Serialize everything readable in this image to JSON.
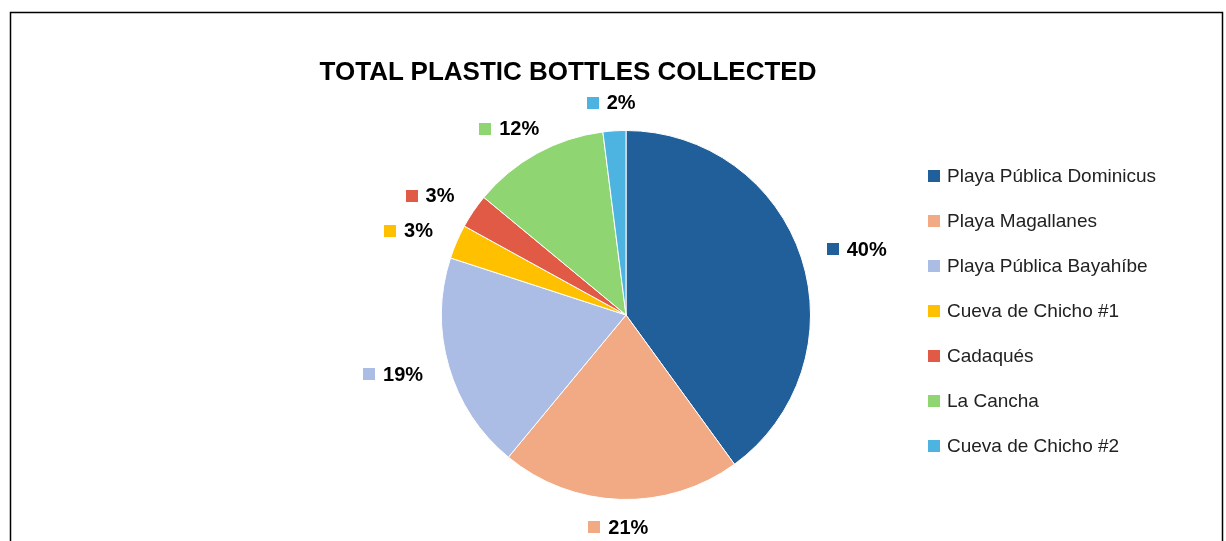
{
  "chart_data": {
    "type": "pie",
    "title": "TOTAL PLASTIC BOTTLES COLLECTED",
    "categories": [
      "Playa Pública Dominicus",
      "Playa Magallanes",
      "Playa Pública Bayahíbe",
      "Cueva de Chicho #1",
      "Cadaqués",
      "La Cancha",
      "Cueva de Chicho #2"
    ],
    "values": [
      40,
      21,
      19,
      3,
      3,
      12,
      2
    ],
    "value_labels": [
      "40%",
      "21%",
      "19%",
      "3%",
      "3%",
      "12%",
      "2%"
    ],
    "colors": [
      "#215f9a",
      "#f1aa84",
      "#abbde4",
      "#ffc000",
      "#e15a45",
      "#8fd672",
      "#4db3e0"
    ],
    "legend": "right"
  }
}
